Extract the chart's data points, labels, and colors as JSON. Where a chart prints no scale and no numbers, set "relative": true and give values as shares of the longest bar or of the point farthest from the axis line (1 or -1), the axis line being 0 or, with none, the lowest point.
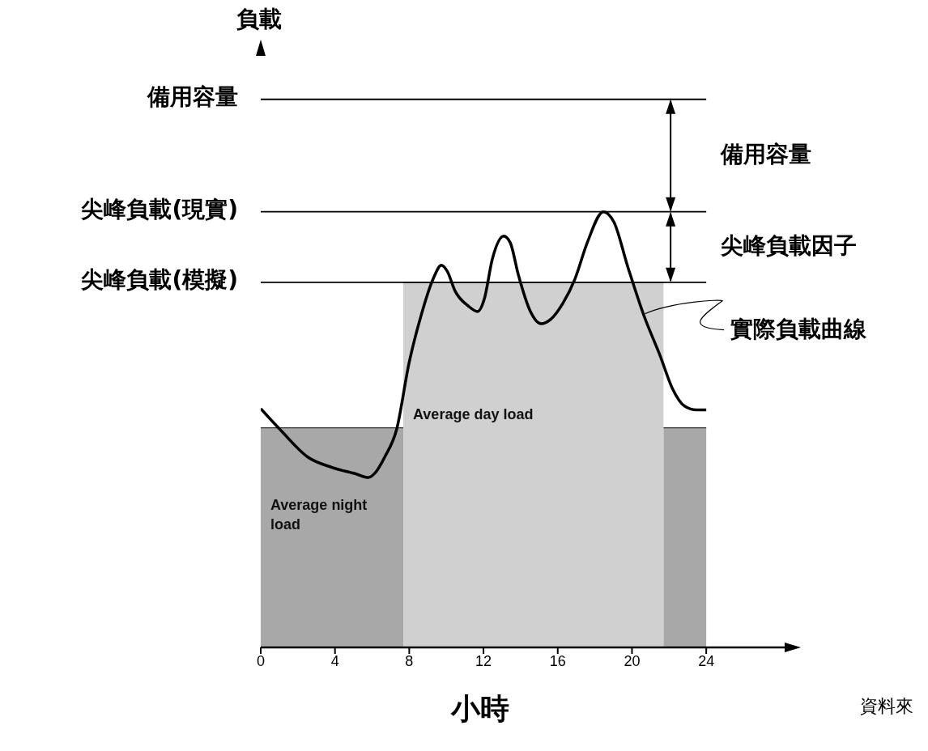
{
  "chart_data": {
    "type": "line",
    "relative": true,
    "xlabel": "小時",
    "xlim": [
      0,
      28.4
    ],
    "xticks": [
      0,
      4,
      8,
      12,
      16,
      20,
      24
    ],
    "marker": "none",
    "series": [
      {
        "name": "Average night load",
        "type": "area",
        "color": "#a8a8a8",
        "x": [
          0,
          7.68
        ],
        "values": [
          0.504,
          0.504
        ]
      },
      {
        "name": "Average day load",
        "type": "area",
        "color": "#d0d0d0",
        "x": [
          7.68,
          21.7
        ],
        "values": [
          0.838,
          0.838
        ]
      },
      {
        "type": "area",
        "color": "#a8a8a8",
        "x": [
          21.7,
          24
        ],
        "values": [
          0.504,
          0.504
        ]
      },
      {
        "name": "實際負載曲線",
        "color": "#000000",
        "x": [
          0,
          1,
          2.53,
          3.84,
          5.15,
          5.8,
          6.15,
          6.68,
          7.33,
          7.98,
          8.64,
          9.29,
          9.73,
          10.04,
          10.47,
          11.17,
          11.69,
          12.04,
          12.48,
          13.09,
          13.44,
          13.88,
          14.53,
          15.1,
          15.62,
          16.28,
          16.93,
          17.59,
          18.46,
          19.03,
          19.77,
          20.64,
          21.52,
          22.17,
          22.83,
          23.48,
          24
        ],
        "values": [
          0.548,
          0.502,
          0.437,
          0.413,
          0.398,
          0.39,
          0.4,
          0.437,
          0.502,
          0.651,
          0.762,
          0.846,
          0.877,
          0.864,
          0.818,
          0.784,
          0.771,
          0.799,
          0.892,
          0.944,
          0.929,
          0.855,
          0.771,
          0.743,
          0.753,
          0.79,
          0.846,
          0.929,
          1,
          0.976,
          0.874,
          0.762,
          0.669,
          0.595,
          0.554,
          0.545,
          0.545
        ]
      }
    ],
    "ref_lines": [
      {
        "axis": "y",
        "value": 1.258,
        "label": "備用容量",
        "color": "#000000"
      },
      {
        "axis": "y",
        "value": 1,
        "label": "尖峰負載(現實)",
        "color": "#000000"
      },
      {
        "axis": "y",
        "value": 0.838,
        "label": "尖峰負載(模擬)",
        "color": "#000000"
      }
    ],
    "annotations": [
      "負載",
      "備用容量",
      "尖峰負載因子",
      "資料來"
    ]
  }
}
